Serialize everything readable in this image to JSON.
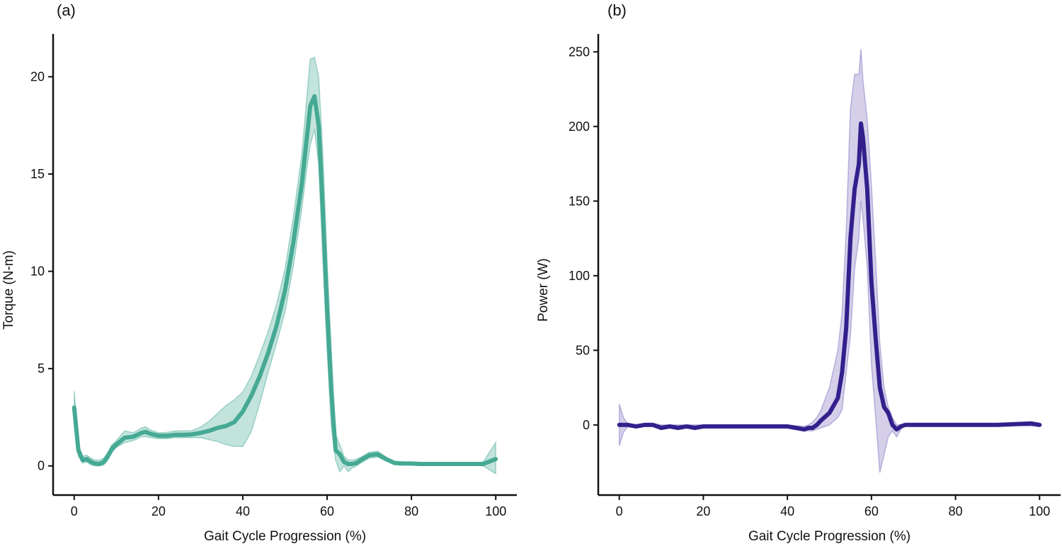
{
  "chart_data": [
    {
      "panel": "(a)",
      "type": "line",
      "xlabel": "Gait Cycle Progression (%)",
      "ylabel": "Torque (N-m)",
      "xlim": [
        -5,
        105
      ],
      "ylim": [
        -1.5,
        22.2
      ],
      "xticks": [
        0,
        20,
        40,
        60,
        80,
        100
      ],
      "yticks": [
        0,
        5,
        10,
        15,
        20
      ],
      "grid": false,
      "line_color": "#45a994",
      "band_color": "#45a994",
      "series": [
        {
          "name": "mean",
          "x": [
            0,
            1,
            2,
            3,
            4,
            5,
            6,
            7,
            8,
            9,
            10,
            12,
            14,
            16,
            17,
            18,
            20,
            22,
            24,
            26,
            28,
            30,
            32,
            34,
            36,
            38,
            40,
            42,
            44,
            46,
            48,
            50,
            52,
            54,
            55,
            56,
            57,
            58,
            59,
            60,
            61,
            62,
            63,
            64,
            65,
            66,
            67,
            68,
            70,
            72,
            74,
            76,
            78,
            80,
            82,
            85,
            90,
            95,
            97,
            100
          ],
          "y": [
            3.0,
            0.8,
            0.3,
            0.35,
            0.2,
            0.12,
            0.1,
            0.2,
            0.5,
            0.9,
            1.1,
            1.45,
            1.5,
            1.7,
            1.75,
            1.65,
            1.55,
            1.55,
            1.6,
            1.6,
            1.62,
            1.7,
            1.8,
            1.95,
            2.05,
            2.25,
            2.8,
            3.6,
            4.6,
            5.8,
            7.2,
            9.0,
            11.5,
            14.5,
            16.5,
            18.5,
            19.0,
            17.5,
            13.0,
            8.0,
            3.8,
            0.8,
            0.6,
            0.2,
            0.1,
            0.1,
            0.15,
            0.3,
            0.55,
            0.6,
            0.35,
            0.15,
            0.12,
            0.12,
            0.1,
            0.1,
            0.1,
            0.1,
            0.1,
            0.35
          ]
        },
        {
          "name": "upper",
          "x": [
            0,
            1,
            2,
            3,
            4,
            5,
            6,
            7,
            8,
            9,
            10,
            12,
            14,
            16,
            17,
            18,
            20,
            22,
            24,
            26,
            28,
            30,
            32,
            34,
            36,
            38,
            40,
            42,
            44,
            46,
            48,
            50,
            52,
            54,
            55,
            56,
            57,
            58,
            59,
            60,
            61,
            62,
            63,
            64,
            65,
            66,
            67,
            68,
            70,
            72,
            74,
            76,
            78,
            80,
            82,
            85,
            90,
            95,
            97,
            100
          ],
          "y": [
            3.85,
            1.1,
            0.5,
            0.55,
            0.4,
            0.3,
            0.3,
            0.4,
            0.7,
            1.1,
            1.3,
            1.8,
            1.7,
            1.95,
            2.0,
            1.85,
            1.7,
            1.72,
            1.8,
            1.8,
            1.82,
            2.0,
            2.3,
            2.7,
            3.1,
            3.4,
            3.8,
            4.6,
            5.7,
            6.9,
            8.3,
            10.1,
            12.8,
            16.0,
            18.5,
            20.9,
            21.0,
            20.0,
            16.0,
            10.5,
            6.0,
            1.6,
            1.1,
            0.5,
            0.3,
            0.3,
            0.35,
            0.45,
            0.7,
            0.75,
            0.45,
            0.2,
            0.15,
            0.15,
            0.12,
            0.12,
            0.12,
            0.12,
            0.2,
            1.2
          ]
        },
        {
          "name": "lower",
          "x": [
            0,
            1,
            2,
            3,
            4,
            5,
            6,
            7,
            8,
            9,
            10,
            12,
            14,
            16,
            17,
            18,
            20,
            22,
            24,
            26,
            28,
            30,
            32,
            34,
            36,
            38,
            40,
            42,
            44,
            46,
            48,
            50,
            52,
            54,
            55,
            56,
            57,
            58,
            59,
            60,
            61,
            62,
            63,
            64,
            65,
            66,
            67,
            68,
            70,
            72,
            74,
            76,
            78,
            80,
            82,
            85,
            90,
            95,
            97,
            100
          ],
          "y": [
            2.3,
            0.5,
            0.15,
            0.2,
            0.05,
            0.0,
            0.0,
            0.05,
            0.3,
            0.7,
            0.95,
            1.2,
            1.3,
            1.5,
            1.5,
            1.45,
            1.4,
            1.4,
            1.45,
            1.45,
            1.45,
            1.45,
            1.35,
            1.25,
            1.1,
            1.0,
            1.0,
            1.75,
            3.2,
            4.8,
            6.3,
            7.9,
            10.3,
            13.2,
            15.0,
            16.5,
            17.3,
            15.5,
            10.5,
            6.0,
            2.0,
            0.3,
            -0.3,
            0.0,
            -0.3,
            -0.1,
            0.0,
            0.15,
            0.4,
            0.45,
            0.25,
            0.1,
            0.08,
            0.08,
            0.08,
            0.08,
            0.08,
            0.08,
            0.0,
            -0.4
          ]
        }
      ]
    },
    {
      "panel": "(b)",
      "type": "line",
      "xlabel": "Gait Cycle Progression (%)",
      "ylabel": "Power (W)",
      "xlim": [
        -5,
        105
      ],
      "ylim": [
        -47,
        262
      ],
      "xticks": [
        0,
        20,
        40,
        60,
        80,
        100
      ],
      "yticks": [
        0,
        50,
        100,
        150,
        200,
        250
      ],
      "grid": false,
      "line_color": "#33208c",
      "band_color": "#7b6bbf",
      "series": [
        {
          "name": "mean",
          "x": [
            0,
            2,
            4,
            6,
            8,
            10,
            12,
            14,
            16,
            18,
            20,
            22,
            24,
            26,
            28,
            30,
            32,
            34,
            36,
            38,
            40,
            42,
            44,
            45,
            46,
            47,
            48,
            50,
            52,
            53,
            54,
            55,
            56,
            57,
            57.5,
            58,
            59,
            60,
            61,
            62,
            63,
            64,
            65,
            66,
            67,
            68,
            70,
            75,
            80,
            90,
            98,
            100
          ],
          "y": [
            0,
            0,
            -1,
            0,
            0,
            -2,
            -1,
            -2,
            -1,
            -2,
            -1,
            -1,
            -1,
            -1,
            -1,
            -1,
            -1,
            -1,
            -1,
            -1,
            -1,
            -2,
            -3,
            -2,
            -2,
            0,
            3,
            8,
            18,
            35,
            65,
            125,
            158,
            175,
            202,
            192,
            158,
            95,
            58,
            25,
            12,
            8,
            0,
            -3,
            -1,
            0,
            0,
            0,
            0,
            0,
            1,
            0
          ]
        },
        {
          "name": "upper",
          "x": [
            0,
            1,
            2,
            4,
            6,
            8,
            10,
            20,
            30,
            40,
            44,
            45,
            46,
            47,
            48,
            50,
            52,
            53,
            54,
            55,
            56,
            57,
            57.5,
            58,
            59,
            60,
            61,
            62,
            63,
            64,
            65,
            66,
            67,
            68,
            70,
            80,
            90,
            100
          ],
          "y": [
            14,
            5,
            1,
            0,
            1,
            1,
            0,
            0,
            0,
            0,
            -1,
            0,
            2,
            5,
            10,
            25,
            50,
            75,
            130,
            212,
            235,
            235,
            252,
            230,
            205,
            160,
            110,
            55,
            25,
            12,
            5,
            0,
            0,
            0,
            0,
            0,
            0,
            1
          ]
        },
        {
          "name": "lower",
          "x": [
            0,
            1,
            2,
            4,
            6,
            8,
            10,
            20,
            30,
            40,
            44,
            45,
            46,
            47,
            48,
            50,
            52,
            53,
            54,
            55,
            56,
            57,
            57.5,
            58,
            59,
            60,
            61,
            62,
            63,
            64,
            65,
            66,
            67,
            68,
            70,
            80,
            90,
            100
          ],
          "y": [
            -14,
            -5,
            -1,
            -1,
            -1,
            -1,
            -2,
            -2,
            -2,
            -2,
            -4,
            -4,
            -4,
            -3,
            -2,
            0,
            5,
            10,
            35,
            60,
            105,
            125,
            150,
            138,
            105,
            40,
            5,
            -32,
            -20,
            -8,
            -4,
            -8,
            -3,
            0,
            0,
            0,
            0,
            -1
          ]
        }
      ]
    }
  ]
}
